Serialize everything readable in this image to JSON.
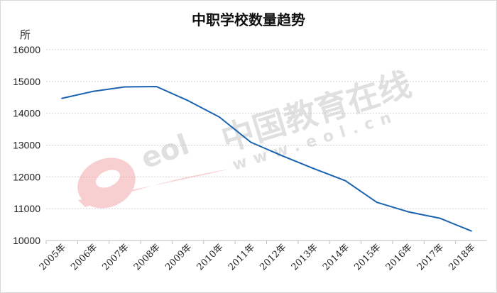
{
  "chart_data": {
    "type": "line",
    "title": "中职学校数量趋势",
    "ylabel": "所",
    "xlabel": "",
    "categories": [
      "2005年",
      "2006年",
      "2007年",
      "2008年",
      "2009年",
      "2010年",
      "2011年",
      "2012年",
      "2013年",
      "2014年",
      "2015年",
      "2016年",
      "2017年",
      "2018年"
    ],
    "series": [
      {
        "values": [
          14470,
          14690,
          14830,
          14840,
          14400,
          13880,
          13090,
          12660,
          12260,
          11880,
          11200,
          10900,
          10700,
          10300
        ]
      }
    ],
    "yticks": [
      "10000",
      "11000",
      "12000",
      "13000",
      "14000",
      "15000",
      "16000"
    ],
    "ylim": [
      10000,
      16000
    ],
    "grid": true,
    "line_color": "#1a63b0"
  },
  "watermark": {
    "logo_text": "eol",
    "cn_text": "中国教育在线",
    "url_text": "www.eol.cn"
  }
}
